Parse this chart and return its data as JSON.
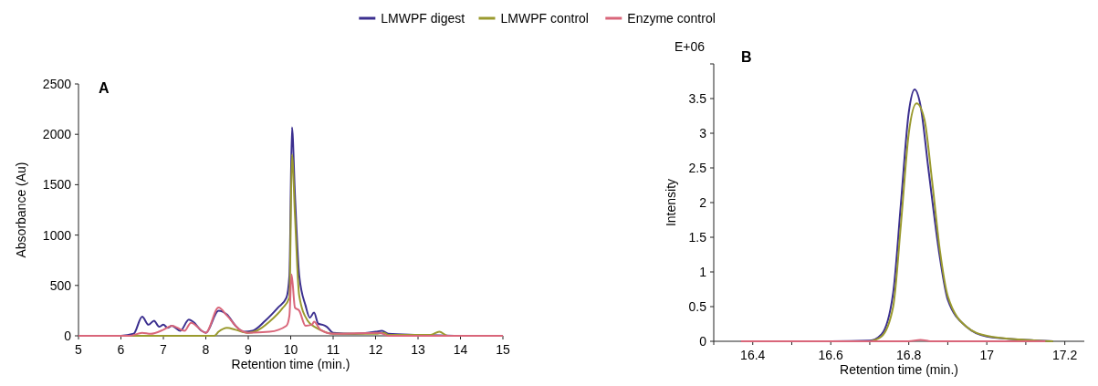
{
  "chart_data": [
    {
      "type": "line",
      "title": "A",
      "xlabel": "Retention time (min.)",
      "ylabel": "Absorbance (Au)",
      "xlim": [
        5,
        15
      ],
      "xticks": [
        5,
        6,
        7,
        8,
        9,
        10,
        11,
        12,
        13,
        14,
        15
      ],
      "ylim": [
        0,
        2500
      ],
      "yticks": [
        0,
        500,
        1000,
        1500,
        2000,
        2500
      ],
      "legend": "top",
      "grid": false,
      "marker": "none",
      "line_style": "solid",
      "series": [
        {
          "name": "LMWPF digest",
          "color": "#3b2f8f",
          "x": [
            5,
            6,
            6.3,
            6.5,
            6.65,
            6.78,
            6.9,
            7.0,
            7.1,
            7.2,
            7.4,
            7.6,
            7.7,
            7.9,
            8.0,
            8.3,
            8.5,
            8.7,
            8.9,
            9.1,
            9.4,
            9.7,
            9.9,
            9.97,
            10.03,
            10.1,
            10.2,
            10.35,
            10.45,
            10.55,
            10.65,
            10.75,
            10.85,
            11.0,
            11.5,
            12.0,
            12.15,
            12.3,
            13,
            14,
            15
          ],
          "values": [
            0,
            0,
            20,
            190,
            110,
            150,
            90,
            110,
            80,
            100,
            50,
            160,
            140,
            50,
            30,
            250,
            210,
            100,
            40,
            50,
            150,
            280,
            380,
            600,
            2070,
            1400,
            600,
            300,
            180,
            230,
            120,
            110,
            90,
            30,
            20,
            40,
            50,
            20,
            10,
            0,
            0
          ]
        },
        {
          "name": "LMWPF control",
          "color": "#9a9a2e",
          "x": [
            5,
            8.2,
            8.3,
            8.5,
            8.7,
            9.0,
            9.2,
            9.5,
            9.8,
            9.97,
            10.03,
            10.1,
            10.2,
            10.4,
            10.6,
            10.8,
            11,
            12,
            12.2,
            12.3,
            13.3,
            13.5,
            13.7,
            15
          ],
          "values": [
            0,
            0,
            40,
            80,
            60,
            30,
            50,
            140,
            270,
            380,
            1800,
            1200,
            400,
            150,
            80,
            40,
            20,
            20,
            30,
            10,
            10,
            40,
            0,
            0
          ]
        },
        {
          "name": "Enzyme control",
          "color": "#d9667a",
          "x": [
            5,
            6.2,
            6.5,
            6.7,
            7.0,
            7.2,
            7.5,
            7.65,
            8.0,
            8.3,
            8.5,
            8.8,
            9.0,
            9.5,
            9.9,
            9.97,
            10.02,
            10.1,
            10.2,
            10.35,
            10.5,
            10.55,
            10.7,
            11,
            12.1,
            12.3,
            15
          ],
          "values": [
            0,
            0,
            30,
            20,
            60,
            100,
            50,
            130,
            30,
            280,
            200,
            60,
            30,
            40,
            100,
            200,
            610,
            280,
            250,
            100,
            110,
            140,
            60,
            20,
            30,
            0,
            0
          ]
        }
      ]
    },
    {
      "type": "line",
      "title": "B",
      "xlabel": "Retention time (min.)",
      "ylabel": "Intensity",
      "annotations": [
        "E+06"
      ],
      "xlim": [
        16.3,
        17.25
      ],
      "xticks": [
        {
          "value": 16.3,
          "label": null
        },
        16.4,
        {
          "value": 16.5,
          "label": null
        },
        16.6,
        {
          "value": 16.7,
          "label": null
        },
        16.8,
        {
          "value": 16.9,
          "label": null
        },
        17,
        {
          "value": 17.1,
          "label": null
        },
        17.2
      ],
      "ylim": [
        0,
        4
      ],
      "yticks": [
        0,
        0.5,
        1,
        1.5,
        2,
        2.5,
        3,
        3.5,
        {
          "value": 4,
          "label": null
        }
      ],
      "grid": false,
      "marker": "none",
      "line_style": "solid",
      "series": [
        {
          "color": "#3b2f8f",
          "x": [
            16.37,
            16.6,
            16.7,
            16.73,
            16.76,
            16.78,
            16.8,
            16.815,
            16.83,
            16.85,
            16.88,
            16.9,
            16.95,
            17,
            17.1,
            17.17
          ],
          "values": [
            0,
            0,
            0.01,
            0.1,
            0.7,
            2.0,
            3.3,
            3.63,
            3.4,
            2.5,
            1.2,
            0.6,
            0.2,
            0.07,
            0.02,
            0
          ]
        },
        {
          "color": "#9a9a2e",
          "x": [
            16.7,
            16.73,
            16.76,
            16.78,
            16.8,
            16.82,
            16.84,
            16.86,
            16.88,
            16.9,
            16.95,
            17,
            17.1,
            17.17
          ],
          "values": [
            0,
            0.07,
            0.5,
            1.7,
            3.0,
            3.43,
            3.2,
            2.3,
            1.3,
            0.65,
            0.2,
            0.08,
            0.02,
            0
          ]
        },
        {
          "color": "#d9667a",
          "x": [
            16.37,
            16.8,
            16.83,
            16.86,
            17.15
          ],
          "values": [
            0,
            0,
            0.02,
            0,
            0
          ]
        }
      ]
    }
  ]
}
